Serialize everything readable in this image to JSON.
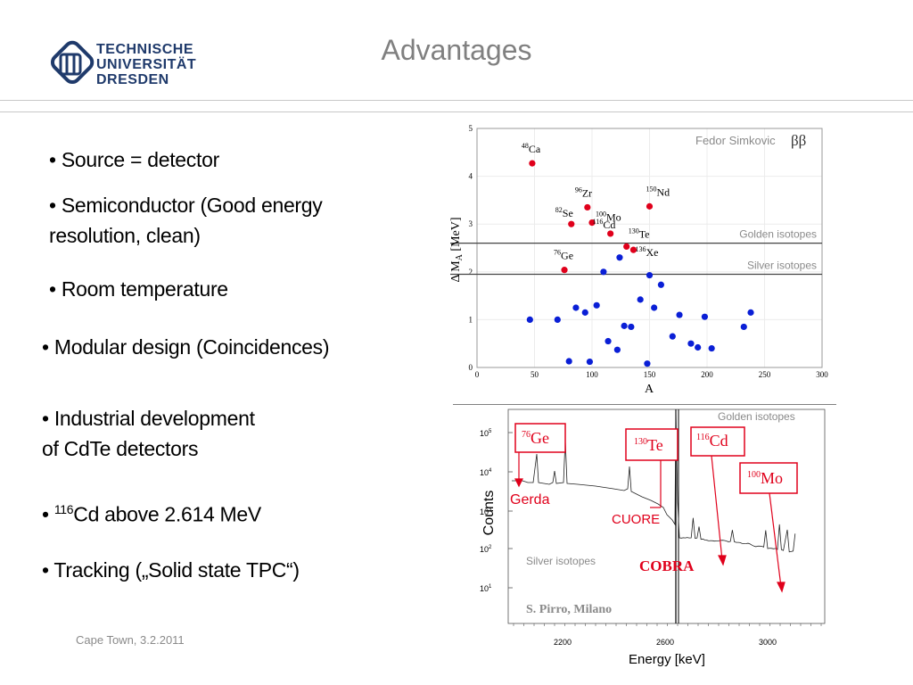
{
  "header": {
    "logo_text": "TECHNISCHE\nUNIVERSITÄT\nDRESDEN",
    "title": "Advantages"
  },
  "bullets": [
    {
      "text": "• Source = detector"
    },
    {
      "text": "• Semiconductor (Good energy\n   resolution, clean)"
    },
    {
      "text": "• Room temperature"
    },
    {
      "text": "• Modular design (Coincidences)"
    },
    {
      "text": "• Industrial development\n   of CdTe detectors"
    },
    {
      "text_prefix": "• ",
      "sup": "116",
      "text_suffix": "Cd above 2.614 MeV"
    },
    {
      "text": "• Tracking („Solid state TPC“)"
    }
  ],
  "footer": {
    "text": "Cape Town, 3.2.2011"
  },
  "colors": {
    "accent_red": "#e0001b",
    "blue_dot": "#0a1fd6",
    "title_gray": "#808080",
    "logo_blue": "#1f3a6b"
  },
  "chart_data": [
    {
      "type": "scatter",
      "xlabel": "A",
      "ylabel": "Δ M_A [MeV]",
      "xlim": [
        0,
        300
      ],
      "ylim": [
        0,
        5
      ],
      "xticks": [
        0,
        50,
        100,
        150,
        200,
        250,
        300
      ],
      "yticks": [
        0,
        1,
        2,
        3,
        4,
        5
      ],
      "legend_text": "Fedor Simkovic",
      "symbol": "ββ",
      "hlines": [
        {
          "y": 2.6,
          "label": "Golden isotopes"
        },
        {
          "y": 1.95,
          "label": "Silver isotopes"
        }
      ],
      "series": [
        {
          "color": "#e0001b",
          "points": [
            {
              "x": 48,
              "y": 4.27,
              "mass": "48",
              "element": "Ca"
            },
            {
              "x": 76,
              "y": 2.04,
              "mass": "76",
              "element": "Ge"
            },
            {
              "x": 82,
              "y": 3.0,
              "mass": "82",
              "element": "Se"
            },
            {
              "x": 96,
              "y": 3.35,
              "mass": "96",
              "element": "Zr"
            },
            {
              "x": 100,
              "y": 3.03,
              "mass": "100",
              "element": "Mo"
            },
            {
              "x": 116,
              "y": 2.8,
              "mass": "116",
              "element": "Cd"
            },
            {
              "x": 130,
              "y": 2.53,
              "mass": "130",
              "element": "Te"
            },
            {
              "x": 136,
              "y": 2.46,
              "mass": "136",
              "element": "Xe"
            },
            {
              "x": 150,
              "y": 3.37,
              "mass": "150",
              "element": "Nd"
            }
          ]
        },
        {
          "color": "#0a1fd6",
          "points": [
            {
              "x": 46,
              "y": 1.0
            },
            {
              "x": 70,
              "y": 1.0
            },
            {
              "x": 80,
              "y": 0.13
            },
            {
              "x": 86,
              "y": 1.25
            },
            {
              "x": 94,
              "y": 1.15
            },
            {
              "x": 98,
              "y": 0.12
            },
            {
              "x": 104,
              "y": 1.3
            },
            {
              "x": 110,
              "y": 2.0
            },
            {
              "x": 114,
              "y": 0.55
            },
            {
              "x": 122,
              "y": 0.37
            },
            {
              "x": 124,
              "y": 2.3
            },
            {
              "x": 128,
              "y": 0.87
            },
            {
              "x": 134,
              "y": 0.85
            },
            {
              "x": 142,
              "y": 1.42
            },
            {
              "x": 148,
              "y": 0.08
            },
            {
              "x": 150,
              "y": 1.93
            },
            {
              "x": 154,
              "y": 1.25
            },
            {
              "x": 160,
              "y": 1.73
            },
            {
              "x": 170,
              "y": 0.65
            },
            {
              "x": 176,
              "y": 1.1
            },
            {
              "x": 186,
              "y": 0.5
            },
            {
              "x": 192,
              "y": 0.42
            },
            {
              "x": 198,
              "y": 1.06
            },
            {
              "x": 204,
              "y": 0.4
            },
            {
              "x": 232,
              "y": 0.85
            },
            {
              "x": 238,
              "y": 1.15
            }
          ]
        }
      ]
    },
    {
      "type": "line",
      "xlabel": "Energy  [keV]",
      "ylabel": "Counts",
      "xticks": [
        "2200",
        "2600",
        "3000"
      ],
      "yticks": [
        "10^1",
        "10^2",
        "10^3",
        "10^4",
        "10^5"
      ],
      "region_labels": [
        "Golden isotopes",
        "Silver isotopes"
      ],
      "boxed_labels": [
        {
          "mass": "76",
          "element": "Ge"
        },
        {
          "mass": "130",
          "element": "Te"
        },
        {
          "mass": "116",
          "element": "Cd"
        },
        {
          "mass": "100",
          "element": "Mo"
        }
      ],
      "experiment_labels": [
        "Gerda",
        "CUORE",
        "COBRA"
      ],
      "credit": "S. Pirro, Milano"
    }
  ]
}
